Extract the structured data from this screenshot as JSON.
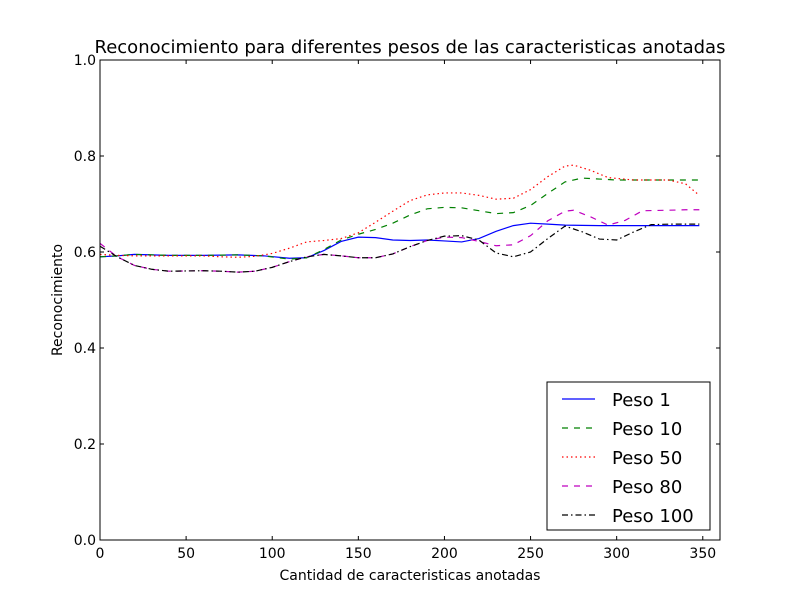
{
  "chart_data": {
    "type": "line",
    "title": "Reconocimiento para diferentes pesos de las caracteristicas anotadas",
    "xlabel": "Cantidad de caracteristicas anotadas",
    "ylabel": "Reconocimiento",
    "xlim": [
      0,
      360
    ],
    "ylim": [
      0.0,
      1.0
    ],
    "xticks": [
      0,
      50,
      100,
      150,
      200,
      250,
      300,
      350
    ],
    "yticks": [
      0.0,
      0.2,
      0.4,
      0.6,
      0.8,
      1.0
    ],
    "xtick_labels": [
      "0",
      "50",
      "100",
      "150",
      "200",
      "250",
      "300",
      "350"
    ],
    "ytick_labels": [
      "0.0",
      "0.2",
      "0.4",
      "0.6",
      "0.8",
      "1.0"
    ],
    "grid": false,
    "legend_position": "bottom-right",
    "series": [
      {
        "name": "Peso 1",
        "color": "#0000ff",
        "style": "solid",
        "points": [
          [
            0,
            0.59
          ],
          [
            10,
            0.592
          ],
          [
            20,
            0.595
          ],
          [
            40,
            0.593
          ],
          [
            60,
            0.593
          ],
          [
            80,
            0.594
          ],
          [
            95,
            0.592
          ],
          [
            110,
            0.587
          ],
          [
            120,
            0.588
          ],
          [
            130,
            0.603
          ],
          [
            140,
            0.622
          ],
          [
            150,
            0.631
          ],
          [
            160,
            0.63
          ],
          [
            170,
            0.625
          ],
          [
            180,
            0.624
          ],
          [
            190,
            0.625
          ],
          [
            200,
            0.623
          ],
          [
            210,
            0.621
          ],
          [
            220,
            0.628
          ],
          [
            230,
            0.643
          ],
          [
            240,
            0.655
          ],
          [
            250,
            0.66
          ],
          [
            260,
            0.658
          ],
          [
            270,
            0.656
          ],
          [
            290,
            0.655
          ],
          [
            320,
            0.655
          ],
          [
            348,
            0.655
          ]
        ]
      },
      {
        "name": "Peso 10",
        "color": "#008000",
        "style": "dashed",
        "points": [
          [
            0,
            0.59
          ],
          [
            10,
            0.592
          ],
          [
            20,
            0.595
          ],
          [
            40,
            0.593
          ],
          [
            60,
            0.593
          ],
          [
            80,
            0.594
          ],
          [
            95,
            0.592
          ],
          [
            110,
            0.585
          ],
          [
            120,
            0.588
          ],
          [
            130,
            0.605
          ],
          [
            140,
            0.625
          ],
          [
            150,
            0.637
          ],
          [
            160,
            0.647
          ],
          [
            170,
            0.66
          ],
          [
            180,
            0.677
          ],
          [
            190,
            0.69
          ],
          [
            200,
            0.693
          ],
          [
            210,
            0.692
          ],
          [
            220,
            0.686
          ],
          [
            230,
            0.68
          ],
          [
            240,
            0.682
          ],
          [
            250,
            0.697
          ],
          [
            260,
            0.722
          ],
          [
            270,
            0.746
          ],
          [
            280,
            0.754
          ],
          [
            290,
            0.752
          ],
          [
            300,
            0.75
          ],
          [
            320,
            0.75
          ],
          [
            348,
            0.75
          ]
        ]
      },
      {
        "name": "Peso 50",
        "color": "#ff0000",
        "style": "dotted",
        "points": [
          [
            0,
            0.595
          ],
          [
            10,
            0.593
          ],
          [
            20,
            0.592
          ],
          [
            40,
            0.592
          ],
          [
            60,
            0.592
          ],
          [
            70,
            0.59
          ],
          [
            80,
            0.589
          ],
          [
            90,
            0.591
          ],
          [
            100,
            0.597
          ],
          [
            110,
            0.608
          ],
          [
            120,
            0.621
          ],
          [
            130,
            0.624
          ],
          [
            140,
            0.628
          ],
          [
            150,
            0.64
          ],
          [
            160,
            0.662
          ],
          [
            170,
            0.685
          ],
          [
            180,
            0.707
          ],
          [
            190,
            0.719
          ],
          [
            200,
            0.723
          ],
          [
            210,
            0.723
          ],
          [
            220,
            0.718
          ],
          [
            230,
            0.71
          ],
          [
            240,
            0.712
          ],
          [
            250,
            0.73
          ],
          [
            260,
            0.757
          ],
          [
            270,
            0.779
          ],
          [
            275,
            0.781
          ],
          [
            285,
            0.77
          ],
          [
            295,
            0.755
          ],
          [
            310,
            0.75
          ],
          [
            330,
            0.75
          ],
          [
            340,
            0.742
          ],
          [
            348,
            0.718
          ]
        ]
      },
      {
        "name": "Peso 80",
        "color": "#bf00bf",
        "style": "dashed",
        "points": [
          [
            0,
            0.618
          ],
          [
            10,
            0.59
          ],
          [
            20,
            0.572
          ],
          [
            30,
            0.564
          ],
          [
            40,
            0.56
          ],
          [
            60,
            0.561
          ],
          [
            70,
            0.56
          ],
          [
            80,
            0.558
          ],
          [
            90,
            0.56
          ],
          [
            100,
            0.568
          ],
          [
            110,
            0.58
          ],
          [
            120,
            0.59
          ],
          [
            130,
            0.595
          ],
          [
            140,
            0.592
          ],
          [
            150,
            0.588
          ],
          [
            160,
            0.588
          ],
          [
            170,
            0.596
          ],
          [
            180,
            0.611
          ],
          [
            190,
            0.624
          ],
          [
            200,
            0.631
          ],
          [
            210,
            0.63
          ],
          [
            220,
            0.622
          ],
          [
            230,
            0.613
          ],
          [
            240,
            0.615
          ],
          [
            250,
            0.634
          ],
          [
            260,
            0.665
          ],
          [
            270,
            0.685
          ],
          [
            275,
            0.687
          ],
          [
            285,
            0.673
          ],
          [
            295,
            0.656
          ],
          [
            305,
            0.666
          ],
          [
            315,
            0.686
          ],
          [
            330,
            0.687
          ],
          [
            340,
            0.688
          ],
          [
            348,
            0.688
          ]
        ]
      },
      {
        "name": "Peso 100",
        "color": "#000000",
        "style": "dashdot",
        "points": [
          [
            0,
            0.612
          ],
          [
            10,
            0.59
          ],
          [
            20,
            0.572
          ],
          [
            30,
            0.564
          ],
          [
            40,
            0.56
          ],
          [
            60,
            0.561
          ],
          [
            70,
            0.56
          ],
          [
            80,
            0.558
          ],
          [
            90,
            0.56
          ],
          [
            100,
            0.568
          ],
          [
            110,
            0.58
          ],
          [
            120,
            0.59
          ],
          [
            130,
            0.595
          ],
          [
            140,
            0.592
          ],
          [
            150,
            0.588
          ],
          [
            160,
            0.588
          ],
          [
            170,
            0.596
          ],
          [
            180,
            0.611
          ],
          [
            190,
            0.624
          ],
          [
            200,
            0.633
          ],
          [
            210,
            0.634
          ],
          [
            220,
            0.625
          ],
          [
            230,
            0.598
          ],
          [
            240,
            0.59
          ],
          [
            250,
            0.6
          ],
          [
            260,
            0.628
          ],
          [
            270,
            0.654
          ],
          [
            280,
            0.642
          ],
          [
            290,
            0.627
          ],
          [
            300,
            0.625
          ],
          [
            310,
            0.642
          ],
          [
            320,
            0.657
          ],
          [
            330,
            0.658
          ],
          [
            348,
            0.658
          ]
        ]
      }
    ]
  }
}
